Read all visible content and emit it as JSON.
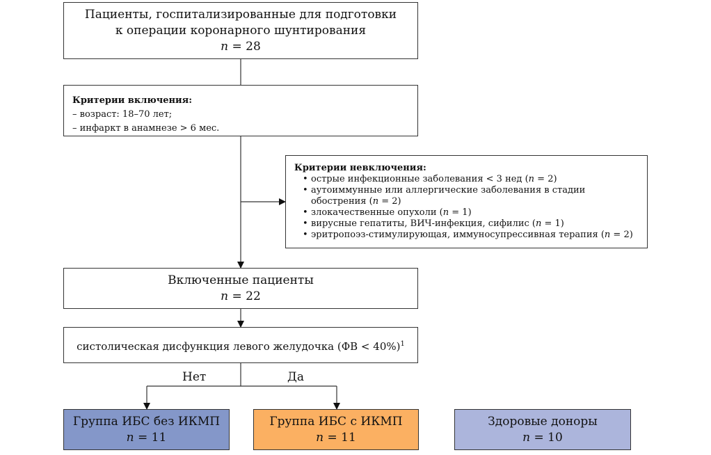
{
  "start": {
    "line1": "Пациенты, госпитализированные для подготовки",
    "line2": "к операции коронарного шунтирования",
    "n": "n",
    "n_value": " = 28"
  },
  "inclusion": {
    "title": "Критерии включения:",
    "items": [
      "– возраст: 18–70 лет;",
      "– инфаркт в анамнезе > 6 мес."
    ]
  },
  "exclusion": {
    "title": "Критерии невключения:",
    "items": [
      {
        "text": "острые инфекционные заболевания < 3 нед (",
        "n": "n",
        "value": " = 2)"
      },
      {
        "text": "аутоиммунные или аллергические заболевания в стадии обострения (",
        "n": "n",
        "value": " = 2)"
      },
      {
        "text": "злокачественные опухоли (",
        "n": "n",
        "value": " = 1)"
      },
      {
        "text": "вирусные гепатиты, ВИЧ-инфекция, сифилис (",
        "n": "n",
        "value": " = 1)"
      },
      {
        "text": "эритропоэз-стимулирующая, иммуносупрессивная терапия (",
        "n": "n",
        "value": " = 2)"
      }
    ]
  },
  "included": {
    "title": "Включенные пациенты",
    "n": "n",
    "n_value": " = 22"
  },
  "decision": {
    "text": "систолическая дисфункция левого желудочка (ФВ < 40%)",
    "sup": "1"
  },
  "branches": {
    "no": "Нет",
    "yes": "Да"
  },
  "groups": [
    {
      "title": "Группа ИБС без ИКМП",
      "n": "n",
      "n_value": " = 11",
      "color": "#8497c9"
    },
    {
      "title": "Группа ИБС с ИКМП",
      "n": "n",
      "n_value": " = 11",
      "color": "#fbb062"
    },
    {
      "title": "Здоровые доноры",
      "n": "n",
      "n_value": " = 10",
      "color": "#acb5dc"
    }
  ]
}
